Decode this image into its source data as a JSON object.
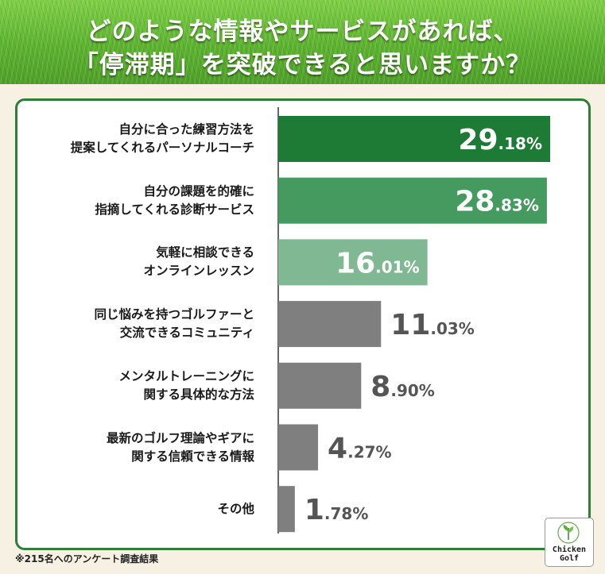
{
  "header": {
    "title_line1": "どのような情報やサービスがあれば、",
    "title_line2": "「停滞期」を突破できると思いますか？"
  },
  "footnote": "※215名へのアンケート調査結果",
  "logo": {
    "line1": "Chicken",
    "line2": "Golf",
    "icon": "leaf-icon"
  },
  "colors": {
    "bar_rank1": "#1e7b35",
    "bar_rank2": "#459a60",
    "bar_rank3": "#7fb893",
    "bar_other": "#7f7f7f",
    "value_other": "#555555",
    "value_top": "#ffffff",
    "frame": "#2e7d3a"
  },
  "chart_data": {
    "type": "bar",
    "orientation": "horizontal",
    "categories": [
      [
        "自分に合った練習方法を",
        "提案してくれるパーソナルコーチ"
      ],
      [
        "自分の課題を的確に",
        "指摘してくれる診断サービス"
      ],
      [
        "気軽に相談できる",
        "オンラインレッスン"
      ],
      [
        "同じ悩みを持つゴルファーと",
        "交流できるコミュニティ"
      ],
      [
        "メンタルトレーニングに",
        "関する具体的な方法"
      ],
      [
        "最新のゴルフ理論やギアに",
        "関する信頼できる情報"
      ],
      [
        "その他"
      ]
    ],
    "values": [
      29.18,
      28.83,
      16.01,
      11.03,
      8.9,
      4.27,
      1.78
    ],
    "value_labels": [
      {
        "int": "29",
        "dec": ".18%"
      },
      {
        "int": "28",
        "dec": ".83%"
      },
      {
        "int": "16",
        "dec": ".01%"
      },
      {
        "int": "11",
        "dec": ".03%"
      },
      {
        "int": "8",
        "dec": ".90%"
      },
      {
        "int": "4",
        "dec": ".27%"
      },
      {
        "int": "1",
        "dec": ".78%"
      }
    ],
    "xlim": [
      0,
      30
    ],
    "grid": false,
    "legend": "none"
  }
}
